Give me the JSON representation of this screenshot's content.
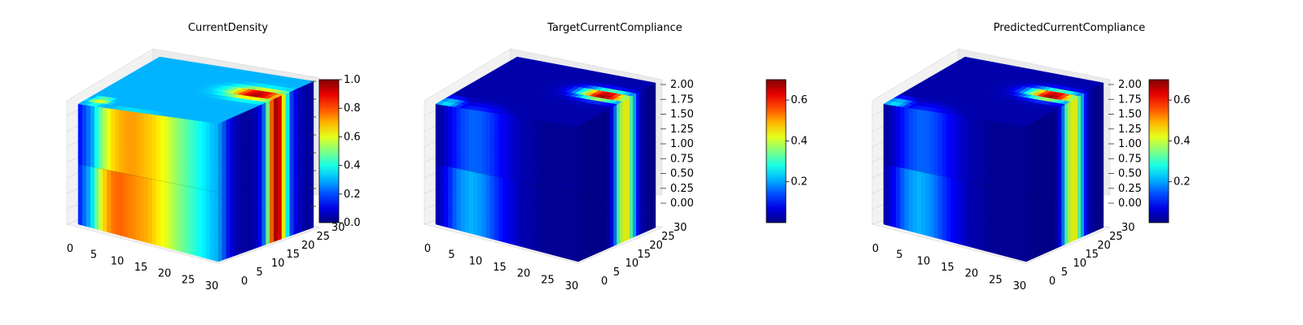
{
  "chart_data": [
    {
      "type": "heatmap",
      "title": "CurrentDensity",
      "x_ticks": [
        "0",
        "5",
        "10",
        "15",
        "20",
        "25",
        "30"
      ],
      "y_ticks": [
        "0",
        "5",
        "10",
        "15",
        "20",
        "25",
        "30"
      ],
      "z_ticks": [],
      "colorbar": {
        "min": 0.0,
        "max": 1.0,
        "ticks": [
          "0.0",
          "0.2",
          "0.4",
          "0.6",
          "0.8",
          "1.0"
        ],
        "colormap": "jet"
      },
      "front_profile": [
        0.12,
        0.2,
        0.28,
        0.45,
        0.58,
        0.66,
        0.7,
        0.72,
        0.72,
        0.7,
        0.68,
        0.66,
        0.62,
        0.58,
        0.52,
        0.48,
        0.44,
        0.4,
        0.36,
        0.32,
        0.3
      ],
      "front_profile_bottom": [
        0.14,
        0.24,
        0.34,
        0.55,
        0.7,
        0.76,
        0.78,
        0.76,
        0.74,
        0.72,
        0.7,
        0.66,
        0.62,
        0.58,
        0.52,
        0.48,
        0.44,
        0.4,
        0.36,
        0.32,
        0.3
      ],
      "side_profile": [
        0.3,
        0.22,
        0.12,
        0.08,
        0.05,
        0.04,
        0.05,
        0.08,
        0.18,
        0.55,
        0.95,
        0.9,
        0.5,
        0.2,
        0.1,
        0.06,
        0.04,
        0.05
      ],
      "top_hotspot": {
        "x": 0.87,
        "y": 0.38,
        "peak": 1.0,
        "spread": 0.2
      },
      "top_base": 0.3,
      "top_corner_accent": {
        "x": 0.1,
        "y": 0.9,
        "value": 0.6
      }
    },
    {
      "type": "heatmap",
      "title": "TargetCurrentCompliance",
      "x_ticks": [
        "0",
        "5",
        "10",
        "15",
        "20",
        "25",
        "30"
      ],
      "y_ticks": [
        "0",
        "5",
        "10",
        "15",
        "20",
        "25",
        "30"
      ],
      "z_ticks": [
        "0.00",
        "0.25",
        "0.50",
        "0.75",
        "1.00",
        "1.25",
        "1.50",
        "1.75",
        "2.00"
      ],
      "colorbar": {
        "min": 0.0,
        "max": 0.7,
        "ticks": [
          "0.2",
          "0.4",
          "0.6"
        ],
        "colormap": "jet"
      },
      "front_profile": [
        0.02,
        0.05,
        0.1,
        0.16,
        0.2,
        0.22,
        0.22,
        0.2,
        0.17,
        0.13,
        0.1,
        0.07,
        0.05,
        0.04,
        0.03,
        0.02,
        0.02,
        0.02,
        0.02,
        0.02,
        0.02
      ],
      "front_profile_bottom": [
        0.03,
        0.08,
        0.16,
        0.24,
        0.28,
        0.3,
        0.28,
        0.25,
        0.2,
        0.15,
        0.11,
        0.08,
        0.05,
        0.04,
        0.03,
        0.02,
        0.02,
        0.02,
        0.02,
        0.02,
        0.02
      ],
      "side_profile": [
        0.02,
        0.02,
        0.02,
        0.02,
        0.02,
        0.02,
        0.02,
        0.04,
        0.2,
        0.5,
        0.62,
        0.6,
        0.4,
        0.15,
        0.05,
        0.02,
        0.02,
        0.02
      ],
      "top_hotspot": {
        "x": 0.85,
        "y": 0.38,
        "peak": 0.72,
        "spread": 0.2
      },
      "top_base": 0.03,
      "top_corner_accent": {
        "x": 0.06,
        "y": 0.95,
        "value": 0.25
      }
    },
    {
      "type": "heatmap",
      "title": "PredictedCurrentCompliance",
      "x_ticks": [
        "0",
        "5",
        "10",
        "15",
        "20",
        "25",
        "30"
      ],
      "y_ticks": [
        "0",
        "5",
        "10",
        "15",
        "20",
        "25",
        "30"
      ],
      "z_ticks": [
        "0.00",
        "0.25",
        "0.50",
        "0.75",
        "1.00",
        "1.25",
        "1.50",
        "1.75",
        "2.00"
      ],
      "colorbar": {
        "min": 0.0,
        "max": 0.7,
        "ticks": [
          "0.2",
          "0.4",
          "0.6"
        ],
        "colormap": "jet"
      },
      "front_profile": [
        0.02,
        0.05,
        0.1,
        0.16,
        0.2,
        0.22,
        0.22,
        0.2,
        0.17,
        0.13,
        0.1,
        0.07,
        0.05,
        0.04,
        0.03,
        0.02,
        0.02,
        0.02,
        0.02,
        0.02,
        0.02
      ],
      "front_profile_bottom": [
        0.03,
        0.08,
        0.16,
        0.24,
        0.28,
        0.3,
        0.28,
        0.25,
        0.2,
        0.15,
        0.11,
        0.08,
        0.05,
        0.04,
        0.03,
        0.02,
        0.02,
        0.02,
        0.02,
        0.02,
        0.02
      ],
      "side_profile": [
        0.02,
        0.02,
        0.02,
        0.02,
        0.02,
        0.02,
        0.02,
        0.04,
        0.2,
        0.5,
        0.62,
        0.6,
        0.4,
        0.15,
        0.05,
        0.02,
        0.02,
        0.02
      ],
      "top_hotspot": {
        "x": 0.85,
        "y": 0.38,
        "peak": 0.72,
        "spread": 0.2
      },
      "top_base": 0.03,
      "top_corner_accent": {
        "x": 0.06,
        "y": 0.95,
        "value": 0.25
      }
    }
  ]
}
